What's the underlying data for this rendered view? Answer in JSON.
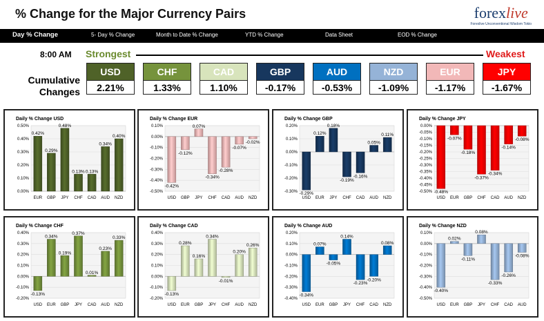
{
  "header": {
    "title": "% Change for the Major Currency Pairs",
    "logo_main": "forex",
    "logo_accent": "live",
    "logo_tagline": "Forexlive Unconventional Wisdom Tokio"
  },
  "nav": {
    "items": [
      {
        "label": "Day % Change",
        "active": true
      },
      {
        "label": "5- Day % Change",
        "active": false
      },
      {
        "label": "Month to Date % Change",
        "active": false
      },
      {
        "label": "YTD % Change",
        "active": false
      },
      {
        "label": "Data Sheet",
        "active": false
      },
      {
        "label": "EOD % Change",
        "active": false
      }
    ]
  },
  "summary": {
    "time": "8:00 AM",
    "strongest_label": "Strongest",
    "weakest_label": "Weakest",
    "row_label": "Cumulative Changes",
    "tiles": [
      {
        "currency": "USD",
        "value": "2.21%",
        "color": "#4f6228"
      },
      {
        "currency": "CHF",
        "value": "1.33%",
        "color": "#76933c"
      },
      {
        "currency": "CAD",
        "value": "1.10%",
        "color": "#d8e4bc"
      },
      {
        "currency": "GBP",
        "value": "-0.17%",
        "color": "#17375e"
      },
      {
        "currency": "AUD",
        "value": "-0.53%",
        "color": "#0070c0"
      },
      {
        "currency": "NZD",
        "value": "-1.09%",
        "color": "#95b3d7"
      },
      {
        "currency": "EUR",
        "value": "-1.17%",
        "color": "#f2b8b8"
      },
      {
        "currency": "JPY",
        "value": "-1.67%",
        "color": "#ff0000"
      }
    ]
  },
  "chart_data": [
    {
      "type": "bar",
      "title": "Daily % Change USD",
      "color": "#4f6228",
      "categories": [
        "EUR",
        "GBP",
        "JPY",
        "CHF",
        "CAD",
        "AUD",
        "NZD"
      ],
      "values": [
        0.42,
        0.29,
        0.48,
        0.13,
        0.13,
        0.34,
        0.4
      ],
      "labels": [
        "0.42%",
        "0.29%",
        "0.48%",
        "0.13%",
        "0.13%",
        "0.34%",
        "0.40%"
      ],
      "ylim": [
        0.0,
        0.5
      ],
      "yticks": [
        0.0,
        0.1,
        0.2,
        0.3,
        0.4,
        0.5
      ],
      "yticklabels": [
        "0.00%",
        "0.10%",
        "0.20%",
        "0.30%",
        "0.40%",
        "0.50%"
      ]
    },
    {
      "type": "bar",
      "title": "Daily % Change EUR",
      "color": "#f2b8b8",
      "categories": [
        "USD",
        "GBP",
        "JPY",
        "CHF",
        "CAD",
        "AUD",
        "NZD"
      ],
      "values": [
        -0.42,
        -0.12,
        0.07,
        -0.34,
        -0.28,
        -0.07,
        -0.02
      ],
      "labels": [
        "-0.42%",
        "-0.12%",
        "0.07%",
        "-0.34%",
        "-0.28%",
        "-0.07%",
        "-0.02%"
      ],
      "ylim": [
        -0.5,
        0.1
      ],
      "yticks": [
        -0.5,
        -0.4,
        -0.3,
        -0.2,
        -0.1,
        0.0,
        0.1
      ],
      "yticklabels": [
        "-0.50%",
        "-0.40%",
        "-0.30%",
        "-0.20%",
        "-0.10%",
        "0.00%",
        "0.10%"
      ]
    },
    {
      "type": "bar",
      "title": "Daily % Change GBP",
      "color": "#17375e",
      "categories": [
        "USD",
        "EUR",
        "JPY",
        "CHF",
        "CAD",
        "AUD",
        "NZD"
      ],
      "values": [
        -0.29,
        0.12,
        0.18,
        -0.19,
        -0.16,
        0.05,
        0.11
      ],
      "labels": [
        "-0.29%",
        "0.12%",
        "0.18%",
        "-0.19%",
        "-0.16%",
        "0.05%",
        "0.11%"
      ],
      "ylim": [
        -0.3,
        0.2
      ],
      "yticks": [
        -0.3,
        -0.2,
        -0.1,
        0.0,
        0.1,
        0.2
      ],
      "yticklabels": [
        "-0.30%",
        "-0.20%",
        "-0.10%",
        "0.00%",
        "0.10%",
        "0.20%"
      ]
    },
    {
      "type": "bar",
      "title": "Daily % Change JPY",
      "color": "#ff0000",
      "categories": [
        "USD",
        "EUR",
        "GBP",
        "CHF",
        "CAD",
        "AUD",
        "NZD"
      ],
      "values": [
        -0.48,
        -0.07,
        -0.18,
        -0.37,
        -0.34,
        -0.14,
        -0.08
      ],
      "labels": [
        "-0.48%",
        "-0.07%",
        "-0.18%",
        "-0.37%",
        "-0.34%",
        "-0.14%",
        "-0.08%"
      ],
      "ylim": [
        -0.5,
        0.0
      ],
      "yticks": [
        -0.5,
        -0.45,
        -0.4,
        -0.35,
        -0.3,
        -0.25,
        -0.2,
        -0.15,
        -0.1,
        -0.05,
        0.0
      ],
      "yticklabels": [
        "-0.50%",
        "-0.45%",
        "-0.40%",
        "-0.35%",
        "-0.30%",
        "-0.25%",
        "-0.20%",
        "-0.15%",
        "-0.10%",
        "-0.05%",
        "0.00%"
      ]
    },
    {
      "type": "bar",
      "title": "Daily % Change CHF",
      "color": "#76933c",
      "categories": [
        "USD",
        "EUR",
        "GBP",
        "JPY",
        "CAD",
        "AUD",
        "NZD"
      ],
      "values": [
        -0.13,
        0.34,
        0.19,
        0.37,
        0.01,
        0.23,
        0.33
      ],
      "labels": [
        "-0.13%",
        "0.34%",
        "0.19%",
        "0.37%",
        "0.01%",
        "0.23%",
        "0.33%"
      ],
      "ylim": [
        -0.2,
        0.4
      ],
      "yticks": [
        -0.2,
        -0.1,
        0.0,
        0.1,
        0.2,
        0.3,
        0.4
      ],
      "yticklabels": [
        "-0.20%",
        "-0.10%",
        "0.00%",
        "0.10%",
        "0.20%",
        "0.30%",
        "0.40%"
      ]
    },
    {
      "type": "bar",
      "title": "Daily % Change CAD",
      "color": "#d8e4bc",
      "categories": [
        "USD",
        "EUR",
        "GBP",
        "JPY",
        "CHF",
        "AUD",
        "NZD"
      ],
      "values": [
        -0.13,
        0.28,
        0.16,
        0.34,
        -0.01,
        0.2,
        0.26
      ],
      "labels": [
        "-0.13%",
        "0.28%",
        "0.16%",
        "0.34%",
        "-0.01%",
        "0.20%",
        "0.26%"
      ],
      "ylim": [
        -0.2,
        0.4
      ],
      "yticks": [
        -0.2,
        -0.1,
        0.0,
        0.1,
        0.2,
        0.3,
        0.4
      ],
      "yticklabels": [
        "-0.20%",
        "-0.10%",
        "0.00%",
        "0.10%",
        "0.20%",
        "0.30%",
        "0.40%"
      ]
    },
    {
      "type": "bar",
      "title": "Daily % Change AUD",
      "color": "#0070c0",
      "categories": [
        "USD",
        "EUR",
        "GBP",
        "JPY",
        "CHF",
        "CAD",
        "NZD"
      ],
      "values": [
        -0.34,
        0.07,
        -0.05,
        0.14,
        -0.23,
        -0.2,
        0.08
      ],
      "labels": [
        "-0.34%",
        "0.07%",
        "-0.05%",
        "0.14%",
        "-0.23%",
        "-0.20%",
        "0.08%"
      ],
      "ylim": [
        -0.4,
        0.2
      ],
      "yticks": [
        -0.4,
        -0.3,
        -0.2,
        -0.1,
        0.0,
        0.1,
        0.2
      ],
      "yticklabels": [
        "-0.40%",
        "-0.30%",
        "-0.20%",
        "-0.10%",
        "0.00%",
        "0.10%",
        "0.20%"
      ]
    },
    {
      "type": "bar",
      "title": "Daily % Change NZD",
      "color": "#95b3d7",
      "categories": [
        "USD",
        "EUR",
        "GBP",
        "JPY",
        "CHF",
        "CAD",
        "AUD"
      ],
      "values": [
        -0.4,
        0.02,
        -0.11,
        0.08,
        -0.33,
        -0.26,
        -0.08
      ],
      "labels": [
        "-0.40%",
        "0.02%",
        "-0.11%",
        "0.08%",
        "-0.33%",
        "-0.26%",
        "-0.08%"
      ],
      "ylim": [
        -0.5,
        0.1
      ],
      "yticks": [
        -0.5,
        -0.4,
        -0.3,
        -0.2,
        -0.1,
        0.0,
        0.1
      ],
      "yticklabels": [
        "-0.50%",
        "-0.40%",
        "-0.30%",
        "-0.20%",
        "-0.10%",
        "0.00%",
        "0.10%"
      ]
    }
  ]
}
